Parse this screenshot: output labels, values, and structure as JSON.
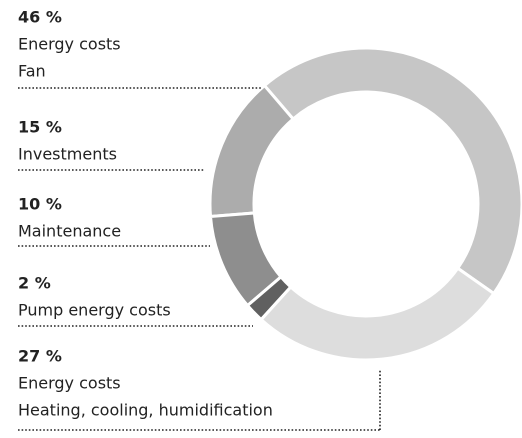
{
  "chart_data": {
    "type": "donut",
    "categories": [
      [
        "Energy costs",
        "Fan"
      ],
      [
        "Investments"
      ],
      [
        "Maintenance"
      ],
      [
        "Pump energy costs"
      ],
      [
        "Energy costs",
        "Heating, cooling, humidification"
      ]
    ],
    "values": [
      46,
      15,
      10,
      2,
      27
    ],
    "value_labels": [
      "46 %",
      "15 %",
      "10 %",
      "2 %",
      "27 %"
    ],
    "colors": [
      "#c6c6c6",
      "#acacac",
      "#8e8e8e",
      "#606060",
      "#dddddd"
    ]
  }
}
